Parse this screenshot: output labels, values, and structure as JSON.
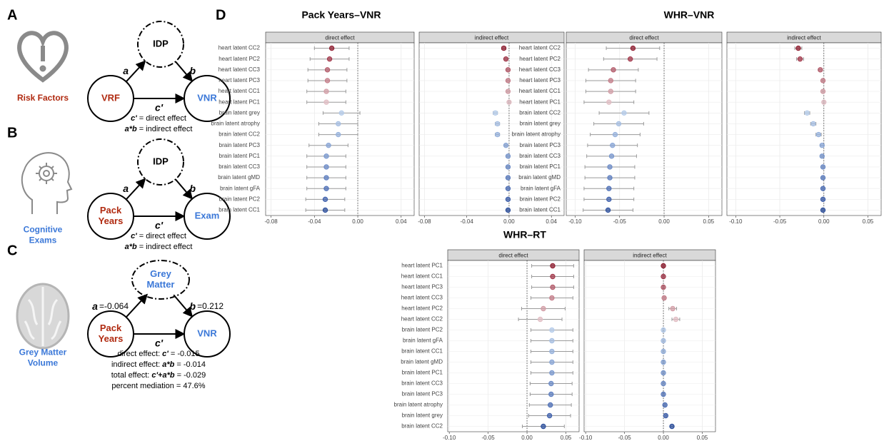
{
  "panels": [
    {
      "letter": "A",
      "icon_label": [
        "Risk Factors"
      ],
      "mediator": [
        "IDP"
      ],
      "exposure": [
        "VRF"
      ],
      "outcome": [
        "VNR"
      ],
      "path_a": "a",
      "path_b": "b",
      "path_c": "c'",
      "notes": [
        {
          "symbol": "c'",
          "text": "= direct effect"
        },
        {
          "symbol": "a*b",
          "text": "= indirect effect"
        }
      ]
    },
    {
      "letter": "B",
      "icon_label": [
        "Cognitive",
        "Exams"
      ],
      "mediator": [
        "IDP"
      ],
      "exposure": [
        "Pack",
        "Years"
      ],
      "outcome": [
        "Exam"
      ],
      "path_a": "a",
      "path_b": "b",
      "path_c": "c'",
      "notes": [
        {
          "symbol": "c'",
          "text": "= direct effect"
        },
        {
          "symbol": "a*b",
          "text": "= indirect effect"
        }
      ]
    },
    {
      "letter": "C",
      "icon_label": [
        "Grey Matter",
        "Volume"
      ],
      "mediator": [
        "Grey",
        "Matter"
      ],
      "exposure": [
        "Pack",
        "Years"
      ],
      "outcome": [
        "VNR"
      ],
      "path_a": "a",
      "path_a_value": "=-0.064",
      "path_b": "b",
      "path_b_value": "=0.212",
      "path_c": "c'",
      "notes": [
        {
          "text": "direct effect:",
          "symbol": "c'",
          "value": "= -0.015"
        },
        {
          "text": "indirect effect:",
          "symbol": "a*b",
          "value": "= -0.014"
        },
        {
          "text": "total effect:",
          "symbol": "c'+a*b",
          "value": "= -0.029"
        },
        {
          "text": "percent mediation = 47.6%"
        }
      ]
    }
  ],
  "figure_label": "D",
  "chart_data": [
    {
      "type": "forest",
      "title": "Pack Years–VNR",
      "grid": true,
      "categories": [
        "heart latent CC2",
        "heart latent PC2",
        "heart latent CC3",
        "heart latent PC3",
        "heart latent CC1",
        "heart latent PC1",
        "brain latent grey",
        "brain latent atrophy",
        "brain latent CC2",
        "brain latent PC3",
        "brain latent PC1",
        "brain latent CC3",
        "brain latent gMD",
        "brain latent gFA",
        "brain latent PC2",
        "brain latent CC1"
      ],
      "point_colors": [
        "#8e1b2e",
        "#a1374a",
        "#b35a69",
        "#c47c88",
        "#d29da6",
        "#e1bec4",
        "#b4cbe9",
        "#a5bee2",
        "#96b1dc",
        "#87a4d5",
        "#7897ce",
        "#6a89c6",
        "#5b7cbf",
        "#4c6eb6",
        "#3d5fab",
        "#2a4d9b"
      ],
      "xlim": [
        -0.085,
        0.052
      ],
      "xticks": [
        -0.08,
        -0.04,
        {
          "value": 0,
          "label": "0.00"
        },
        0.04
      ],
      "series": [
        {
          "name": "direct effect",
          "values": [
            -0.024,
            -0.026,
            -0.028,
            -0.028,
            -0.029,
            -0.029,
            -0.015,
            -0.018,
            -0.018,
            -0.027,
            -0.029,
            -0.029,
            -0.029,
            -0.029,
            -0.03,
            -0.03
          ],
          "errors": [
            0.016,
            0.018,
            0.018,
            0.018,
            0.018,
            0.018,
            0.017,
            0.018,
            0.018,
            0.018,
            0.018,
            0.018,
            0.018,
            0.018,
            0.018,
            0.018
          ]
        },
        {
          "name": "indirect effect",
          "values": [
            -0.005,
            -0.003,
            -0.001,
            -0.001,
            -0.001,
            0,
            -0.013,
            -0.011,
            -0.011,
            -0.003,
            -0.001,
            -0.001,
            -0.001,
            -0.001,
            -0.001,
            -0.001
          ],
          "errors": [
            0.002,
            0.001,
            0.001,
            0.001,
            0.001,
            0.001,
            0.002,
            0.002,
            0.002,
            0.001,
            0.001,
            0.001,
            0.001,
            0.001,
            0.001,
            0.001
          ]
        }
      ]
    },
    {
      "type": "forest",
      "title": "WHR–VNR",
      "grid": true,
      "categories": [
        "heart latent CC2",
        "heart latent PC2",
        "heart latent CC3",
        "heart latent PC3",
        "heart latent CC1",
        "heart latent PC1",
        "brain latent CC2",
        "brain latent grey",
        "brain latent atrophy",
        "brain latent PC3",
        "brain latent CC3",
        "brain latent PC1",
        "brain latent gMD",
        "brain latent gFA",
        "brain latent PC2",
        "brain latent CC1"
      ],
      "point_colors": [
        "#8e1b2e",
        "#a1374a",
        "#b35a69",
        "#c47c88",
        "#d29da6",
        "#e1bec4",
        "#b4cbe9",
        "#a5bee2",
        "#96b1dc",
        "#87a4d5",
        "#7897ce",
        "#6a89c6",
        "#5b7cbf",
        "#4c6eb6",
        "#3d5fab",
        "#2a4d9b"
      ],
      "xlim": [
        -0.11,
        0.065
      ],
      "xticks": [
        {
          "value": -0.1,
          "label": "-0.10"
        },
        -0.05,
        {
          "value": 0,
          "label": "0.00"
        },
        0.05
      ],
      "series": [
        {
          "name": "direct effect",
          "values": [
            -0.035,
            -0.038,
            -0.057,
            -0.06,
            -0.06,
            -0.062,
            -0.045,
            -0.051,
            -0.055,
            -0.058,
            -0.059,
            -0.061,
            -0.061,
            -0.062,
            -0.062,
            -0.063
          ],
          "errors": [
            0.03,
            0.03,
            0.028,
            0.028,
            0.028,
            0.028,
            0.028,
            0.028,
            0.028,
            0.028,
            0.028,
            0.028,
            0.028,
            0.028,
            0.028,
            0.028
          ]
        },
        {
          "name": "indirect effect",
          "values": [
            -0.029,
            -0.027,
            -0.004,
            -0.001,
            -0.001,
            0,
            -0.019,
            -0.012,
            -0.006,
            -0.002,
            -0.002,
            -0.001,
            -0.001,
            -0.001,
            -0.001,
            -0.001
          ],
          "errors": [
            0.004,
            0.004,
            0.002,
            0.001,
            0.001,
            0.001,
            0.003,
            0.003,
            0.003,
            0.002,
            0.001,
            0.001,
            0.001,
            0.001,
            0.001,
            0.001
          ]
        }
      ]
    },
    {
      "type": "forest",
      "title": "WHR–RT",
      "grid": true,
      "categories": [
        "heart latent PC1",
        "heart latent CC1",
        "heart latent PC3",
        "heart latent CC3",
        "heart latent PC2",
        "heart latent CC2",
        "brain latent PC2",
        "brain latent gFA",
        "brain latent CC1",
        "brain latent gMD",
        "brain latent PC1",
        "brain latent CC3",
        "brain latent PC3",
        "brain latent atrophy",
        "brain latent grey",
        "brain latent CC2"
      ],
      "point_colors": [
        "#8e1b2e",
        "#a1374a",
        "#b35a69",
        "#c47c88",
        "#d29da6",
        "#e1bec4",
        "#b4cbe9",
        "#a5bee2",
        "#96b1dc",
        "#87a4d5",
        "#7897ce",
        "#6a89c6",
        "#5b7cbf",
        "#4c6eb6",
        "#3d5fab",
        "#2a4d9b"
      ],
      "xlim": [
        -0.102,
        0.067
      ],
      "xticks": [
        {
          "value": -0.1,
          "label": "-0.10"
        },
        -0.05,
        {
          "value": 0,
          "label": "0.00"
        },
        0.05
      ],
      "series": [
        {
          "name": "direct effect",
          "values": [
            0.033,
            0.033,
            0.033,
            0.032,
            0.021,
            0.017,
            0.032,
            0.032,
            0.032,
            0.032,
            0.032,
            0.031,
            0.031,
            0.03,
            0.029,
            0.021
          ],
          "errors": [
            0.027,
            0.027,
            0.027,
            0.027,
            0.028,
            0.028,
            0.027,
            0.027,
            0.027,
            0.027,
            0.027,
            0.027,
            0.027,
            0.027,
            0.027,
            0.027
          ]
        },
        {
          "name": "indirect effect",
          "values": [
            0,
            0,
            0,
            0.001,
            0.012,
            0.016,
            0,
            0,
            0,
            0,
            0,
            0,
            0,
            0.002,
            0.003,
            0.011
          ],
          "errors": [
            0.001,
            0.001,
            0.001,
            0.001,
            0.005,
            0.005,
            0.001,
            0.001,
            0.001,
            0.001,
            0.001,
            0.001,
            0.001,
            0.001,
            0.001,
            0.002
          ]
        }
      ]
    }
  ]
}
